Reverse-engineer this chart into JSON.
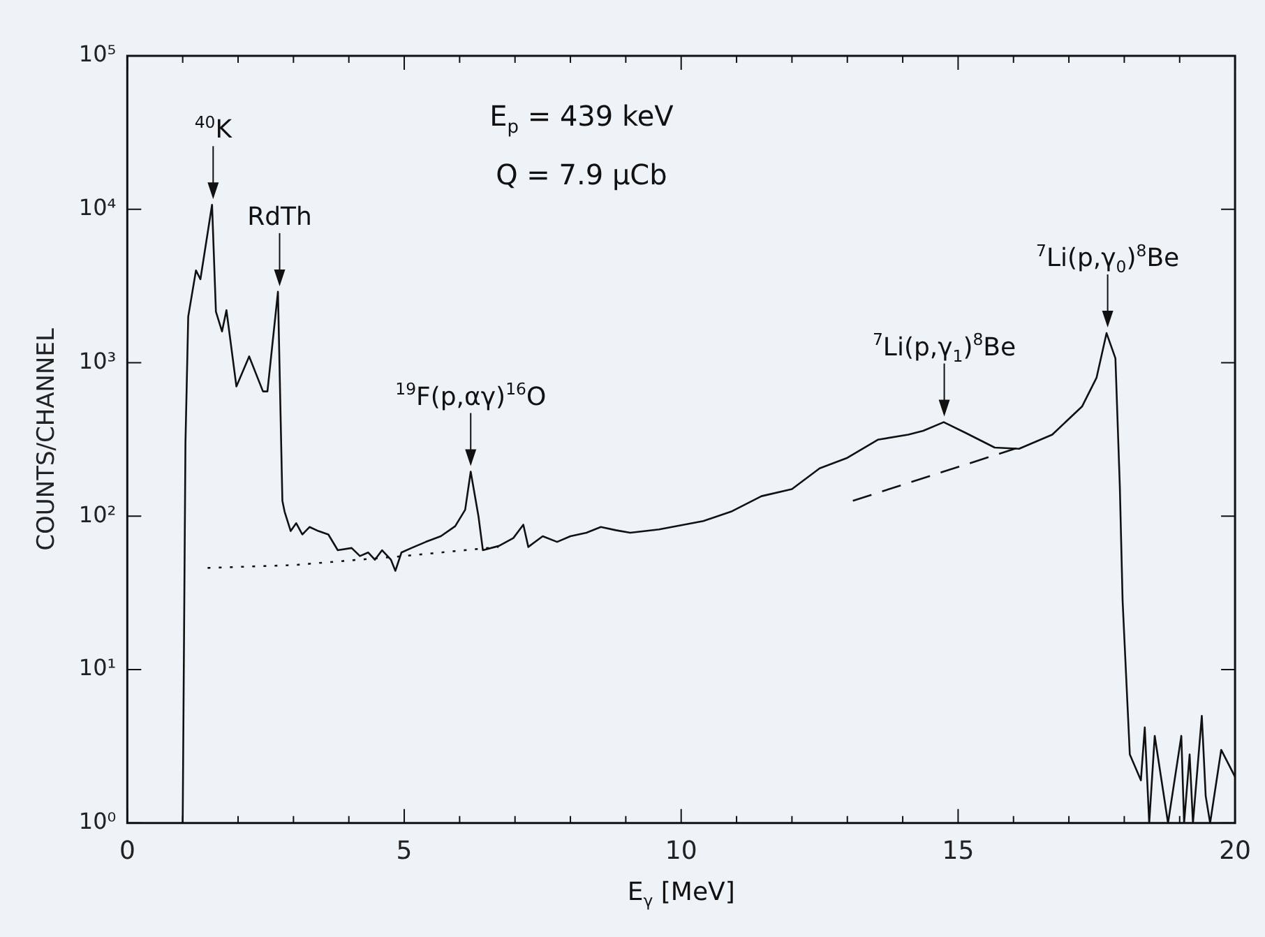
{
  "chart_data": {
    "type": "line",
    "xlabel": "E$_{γ}$ [MeV]",
    "ylabel": "COUNTS/CHANNEL",
    "log": "y",
    "grid": false,
    "legend": false,
    "marker": "none",
    "xlim": [
      0,
      20
    ],
    "ylim": [
      1,
      100000
    ],
    "xticks": [
      0,
      {
        "value": 1,
        "label": null
      },
      {
        "value": 2,
        "label": null
      },
      {
        "value": 3,
        "label": null
      },
      {
        "value": 4,
        "label": null
      },
      5,
      {
        "value": 6,
        "label": null
      },
      {
        "value": 7,
        "label": null
      },
      {
        "value": 8,
        "label": null
      },
      {
        "value": 9,
        "label": null
      },
      10,
      {
        "value": 11,
        "label": null
      },
      {
        "value": 12,
        "label": null
      },
      {
        "value": 13,
        "label": null
      },
      {
        "value": 14,
        "label": null
      },
      15,
      {
        "value": 16,
        "label": null
      },
      {
        "value": 17,
        "label": null
      },
      {
        "value": 18,
        "label": null
      },
      {
        "value": 19,
        "label": null
      },
      20
    ],
    "yticks": [
      {
        "value": 1,
        "label": "10⁰"
      },
      {
        "value": 10,
        "label": "10¹"
      },
      {
        "value": 100,
        "label": "10²"
      },
      {
        "value": 1000,
        "label": "10³"
      },
      {
        "value": 10000,
        "label": "10⁴"
      },
      {
        "value": 100000,
        "label": "10⁵"
      }
    ],
    "series": [
      {
        "color": "#111111",
        "line_style": "solid",
        "x": [
          1.0,
          1.05,
          1.1,
          1.24,
          1.32,
          1.53,
          1.6,
          1.71,
          1.79,
          1.97,
          2.2,
          2.45,
          2.53,
          2.72,
          2.8,
          2.84,
          2.95,
          3.05,
          3.16,
          3.29,
          3.45,
          3.63,
          3.8,
          4.05,
          4.2,
          4.35,
          4.47,
          4.6,
          4.76,
          4.84,
          4.95,
          5.13,
          5.39,
          5.66,
          5.92,
          6.1,
          6.2,
          6.34,
          6.42,
          6.71,
          6.97,
          7.15,
          7.24,
          7.5,
          7.76,
          8.0,
          8.29,
          8.55,
          8.82,
          9.08,
          9.6,
          10.4,
          10.9,
          11.45,
          12.0,
          12.5,
          13.0,
          13.55,
          14.1,
          14.37,
          14.74,
          15.13,
          15.66,
          16.1,
          16.7,
          17.24,
          17.5,
          17.68,
          17.84,
          17.92,
          17.97,
          18.1,
          18.3,
          18.37,
          18.45,
          18.55,
          18.79,
          19.03,
          19.08,
          19.18,
          19.24,
          19.4,
          19.47,
          19.55,
          19.75,
          20.0
        ],
        "values": [
          1,
          300,
          2000,
          4000,
          3500,
          10700,
          2150,
          1600,
          2200,
          700,
          1100,
          650,
          650,
          2900,
          126,
          107,
          80,
          90,
          76,
          85,
          80,
          76,
          60,
          62,
          55,
          58,
          52,
          60,
          52,
          44,
          58,
          62,
          68,
          74,
          86,
          110,
          195,
          100,
          60,
          64,
          72,
          88,
          63,
          74,
          68,
          74,
          78,
          85,
          81,
          78,
          82,
          93,
          107,
          135,
          150,
          205,
          240,
          315,
          340,
          360,
          410,
          350,
          280,
          275,
          340,
          520,
          800,
          1560,
          1070,
          155,
          28,
          2.8,
          1.9,
          4.2,
          1,
          3.7,
          1,
          3.7,
          1,
          2.8,
          1,
          5,
          1.5,
          1,
          3,
          2
        ]
      },
      {
        "color": "#111111",
        "line_style": "dotted",
        "x": [
          1.45,
          3.0,
          5.0,
          6.7
        ],
        "values": [
          46,
          48,
          55,
          63
        ]
      },
      {
        "color": "#111111",
        "line_style": "dashed",
        "x": [
          13.1,
          16.05
        ],
        "values": [
          126,
          277
        ]
      }
    ],
    "annotations": [
      {
        "text": "$^{40}$K",
        "x": 1.55,
        "y": 10700
      },
      {
        "text": "RdTh",
        "x": 2.75,
        "y": 2900
      },
      {
        "text": "$^{19}$F(p,αγ)$^{16}$O",
        "x": 6.2,
        "y": 195
      },
      {
        "text": "$^{7}$Li(p,γ$_{1}$)$^{8}$Be",
        "x": 14.75,
        "y": 410
      },
      {
        "text": "$^{7}$Li(p,γ$_{0}$)$^{8}$Be",
        "x": 17.7,
        "y": 1560
      },
      "E$_{p}$ = 439 keV",
      "Q = 7.9 μCb"
    ]
  }
}
